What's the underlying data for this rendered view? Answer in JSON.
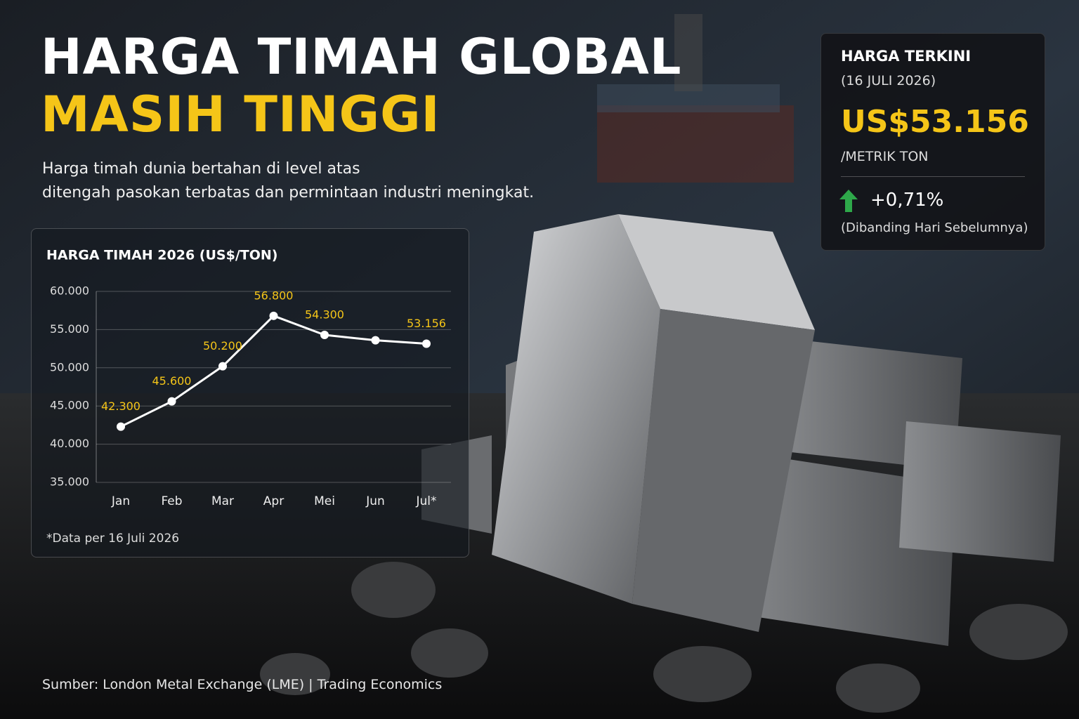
{
  "header": {
    "title_line1": "HARGA TIMAH GLOBAL",
    "title_line2": "MASIH TINGGI",
    "subtitle": [
      "Harga timah dunia bertahan di level atas",
      "ditengah pasokan terbatas dan permintaan industri meningkat."
    ]
  },
  "price_card": {
    "heading": "HARGA TERKINI",
    "date": "(16 JULI 2026)",
    "price": "US$53.156",
    "unit": "/METRIK TON",
    "change": "+0,71%",
    "change_note": "(Dibanding Hari Sebelumnya)"
  },
  "chart_data": {
    "type": "line",
    "title": "HARGA TIMAH 2026 (US$/TON)",
    "categories": [
      "Jan",
      "Feb",
      "Mar",
      "Apr",
      "Mei",
      "Jun",
      "Jul*"
    ],
    "values": [
      42300,
      45600,
      50200,
      56800,
      54300,
      53600,
      53156
    ],
    "value_labels": [
      "42.300",
      "45.600",
      "50.200",
      "56.800",
      "54.300",
      null,
      "53.156"
    ],
    "color": "#ffffff",
    "label_color": "#f5c518",
    "ylim": [
      35000,
      60000
    ],
    "yticks": [
      {
        "value": 35000,
        "label": "35.000"
      },
      {
        "value": 40000,
        "label": "40.000"
      },
      {
        "value": 45000,
        "label": "45.000"
      },
      {
        "value": 50000,
        "label": "50.000"
      },
      {
        "value": 55000,
        "label": "55.000"
      },
      {
        "value": 60000,
        "label": "60.000"
      }
    ],
    "grid": true,
    "note": "*Data per 16 Juli 2026"
  },
  "source": "Sumber: London Metal Exchange (LME) | Trading Economics"
}
